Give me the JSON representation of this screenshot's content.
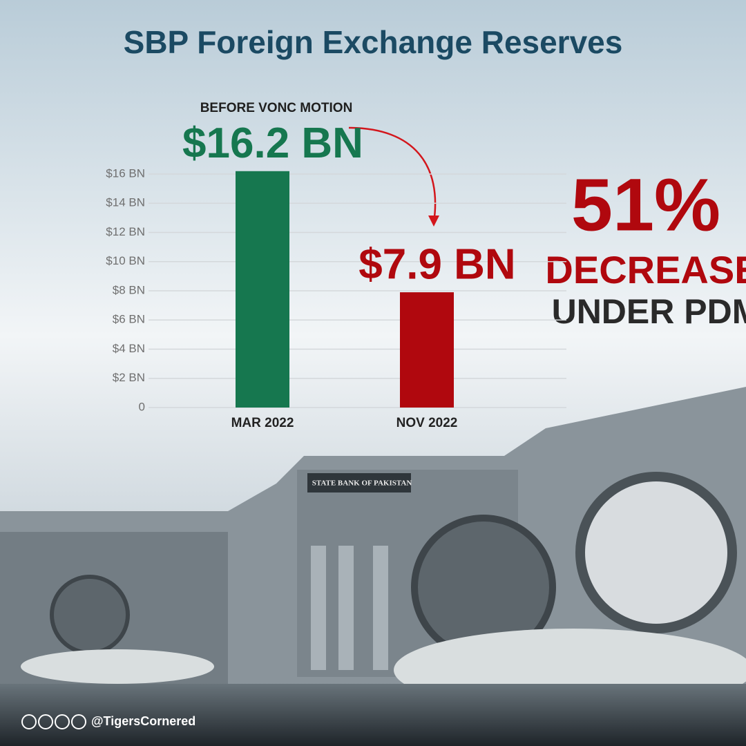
{
  "chart_data": {
    "type": "bar",
    "title": "SBP Foreign Exchange Reserves",
    "annotations": [
      "BEFORE VONC MOTION",
      "51%",
      "DECREASE",
      "UNDER PDM",
      "STATE BANK OF PAKISTAN"
    ],
    "handle": "@TigersCornered",
    "categories": [
      "MAR 2022",
      "NOV 2022"
    ],
    "values": [
      16.2,
      7.9
    ],
    "value_labels": [
      "$16.2 BN",
      "$7.9 BN"
    ],
    "colors": [
      "#16774f",
      "#b0080e"
    ],
    "ylim": [
      0,
      16
    ],
    "yticks": [
      0,
      {
        "value": 2,
        "label": "$2 BN"
      },
      {
        "value": 4,
        "label": "$4 BN"
      },
      {
        "value": 6,
        "label": "$6 BN"
      },
      {
        "value": 8,
        "label": "$8 BN"
      },
      {
        "value": 10,
        "label": "$10 BN"
      },
      {
        "value": 12,
        "label": "$12 BN"
      },
      {
        "value": 14,
        "label": "$14 BN"
      },
      {
        "value": 16,
        "label": "$16 BN"
      }
    ],
    "grid": true
  }
}
